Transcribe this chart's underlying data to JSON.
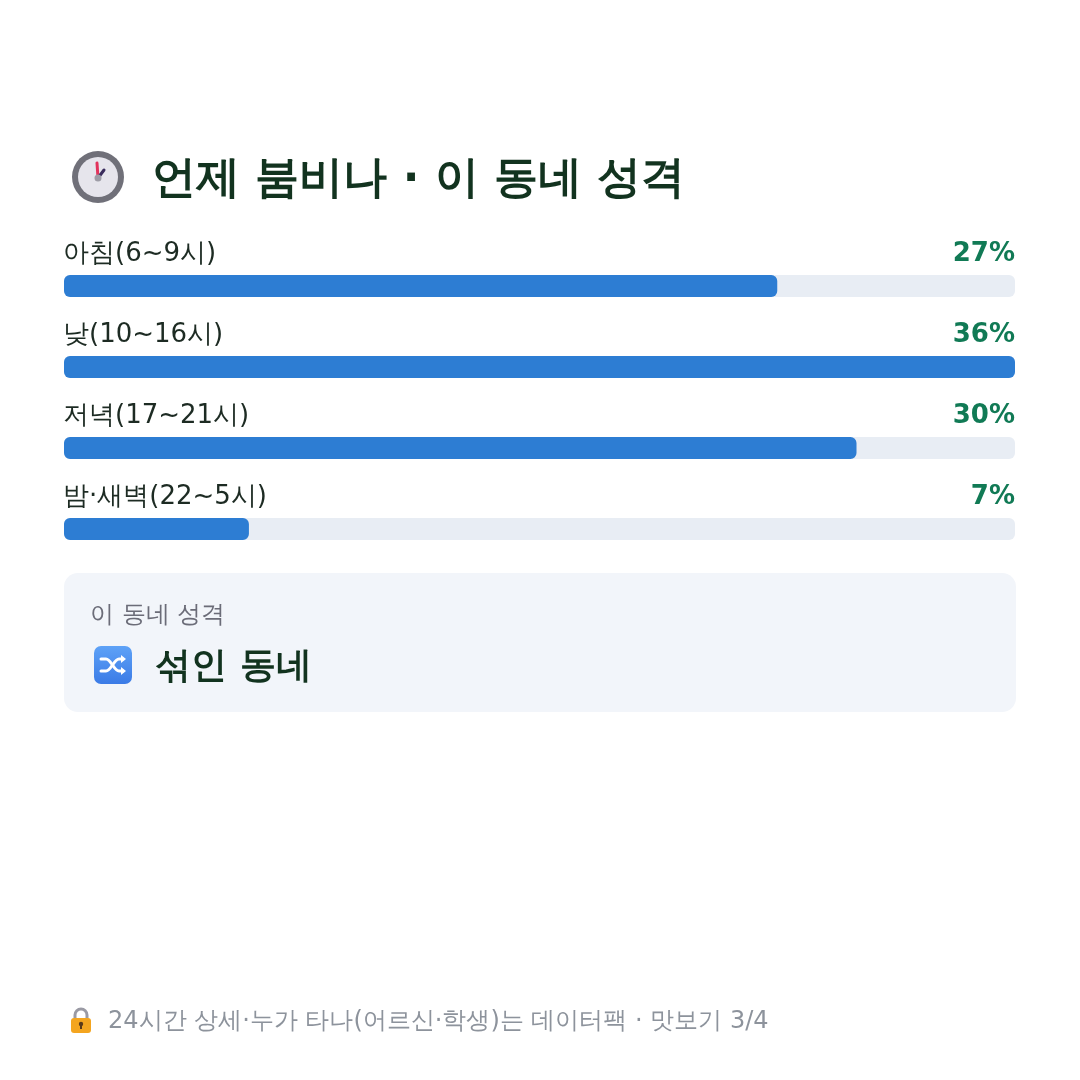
{
  "chart_data": {
    "type": "bar",
    "orientation": "horizontal",
    "title": "언제 붐비나 · 이 동네 성격",
    "categories": [
      "아침(6~9시)",
      "낮(10~16시)",
      "저녁(17~21시)",
      "밤·새벽(22~5시)"
    ],
    "values": [
      27,
      36,
      30,
      7
    ],
    "value_labels": [
      "27%",
      "36%",
      "30%",
      "7%"
    ],
    "color": "#2d7dd3",
    "annotations": [
      "이 동네 성격",
      "섞인 동네",
      "24시간 상세·누가 타나(어르신·학생)는 데이터팩 · 맛보기 3/4"
    ]
  }
}
